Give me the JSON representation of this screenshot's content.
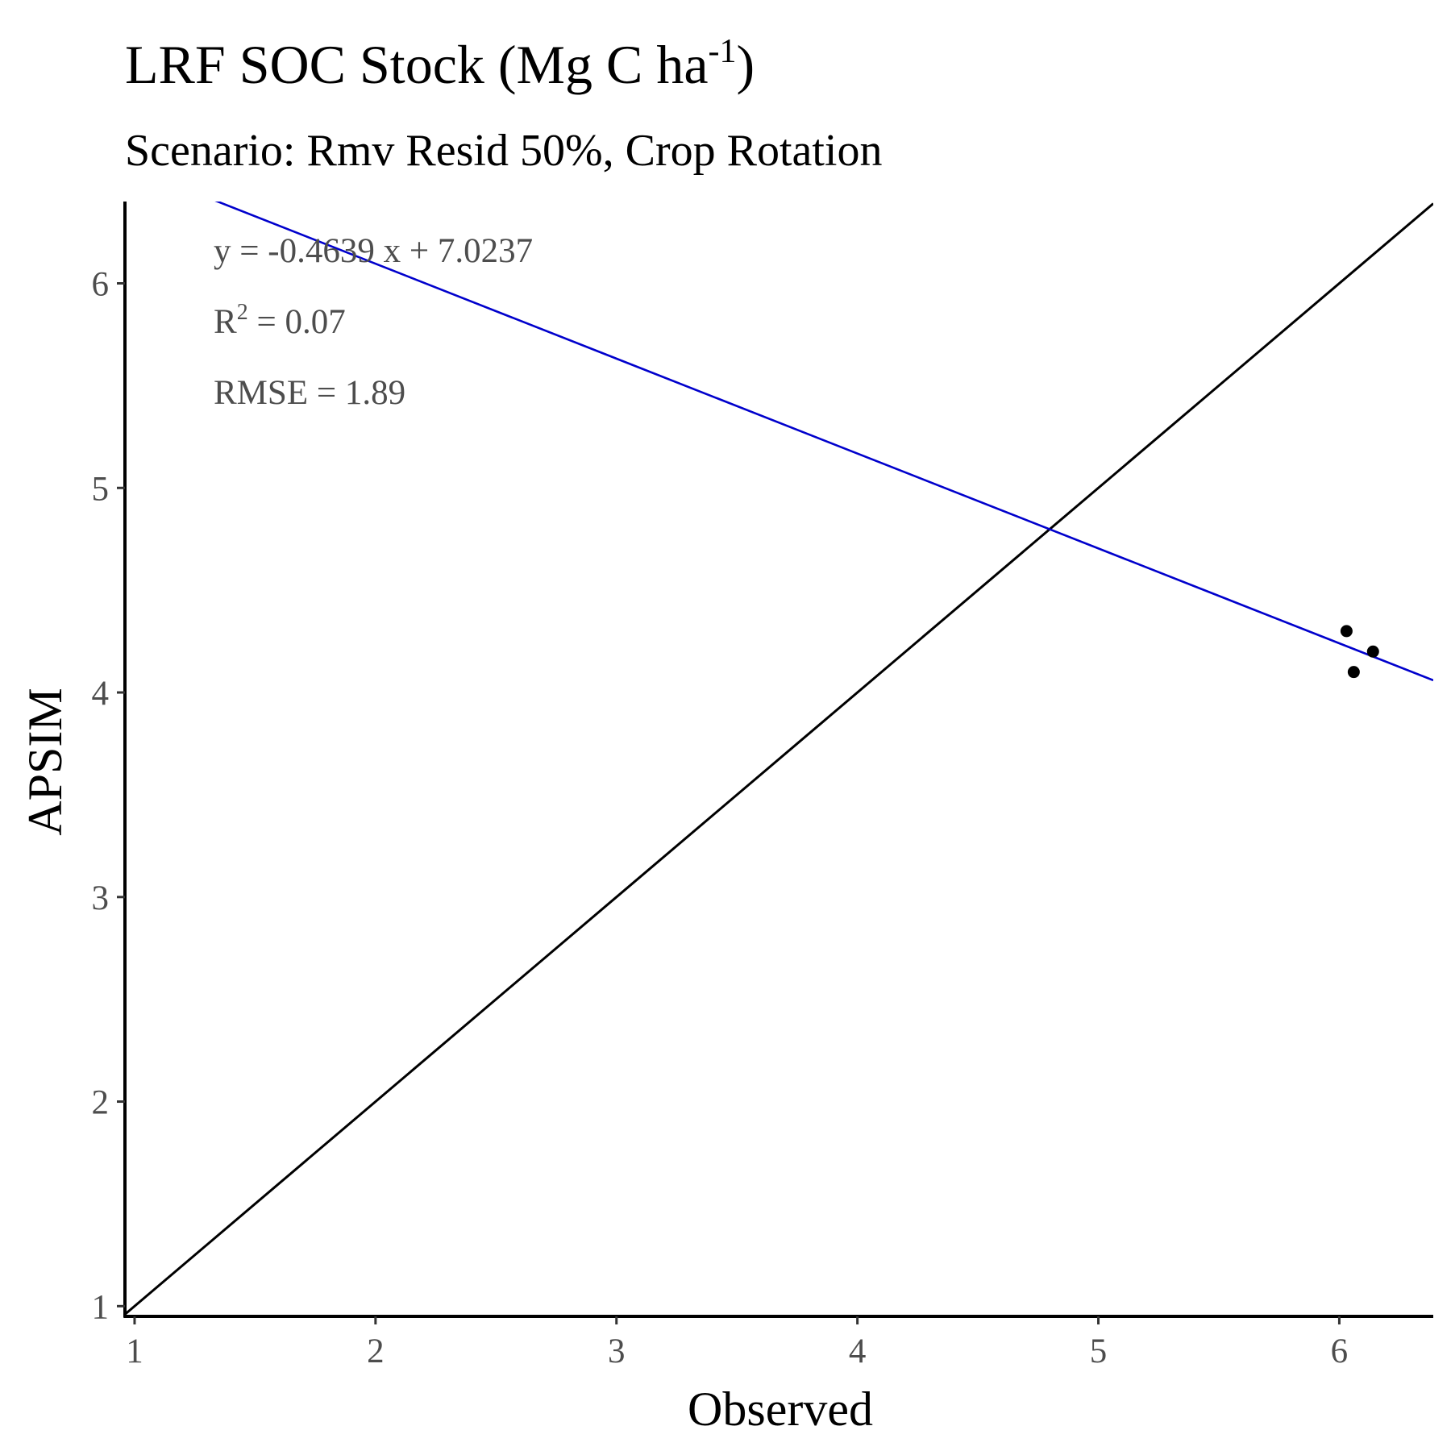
{
  "chart_data": {
    "type": "scatter",
    "title": "LRF SOC Stock (Mg C ha",
    "title_superscript": "-1",
    "title_suffix": ")",
    "subtitle": "Scenario: Rmv Resid 50%, Crop Rotation",
    "xlabel": "Observed",
    "ylabel": "APSIM",
    "xlim": [
      0.96,
      6.39
    ],
    "ylim": [
      0.95,
      6.4
    ],
    "x_ticks": [
      1,
      2,
      3,
      4,
      5,
      6
    ],
    "y_ticks": [
      1,
      2,
      3,
      4,
      5,
      6
    ],
    "grid": false,
    "legend": "none",
    "points": [
      {
        "x": 6.03,
        "y": 4.3
      },
      {
        "x": 6.06,
        "y": 4.1
      },
      {
        "x": 6.14,
        "y": 4.2
      }
    ],
    "regression_line": {
      "slope": -0.4639,
      "intercept": 7.0237,
      "color": "#0000cc"
    },
    "identity_line": {
      "slope": 1,
      "intercept": 0,
      "color": "#000000"
    },
    "annotations": {
      "equation": "y = -0.4639 x +  7.0237",
      "r2_label": "R",
      "r2_superscript": "2",
      "r2_value": " = 0.07",
      "rmse": "RMSE = 1.89"
    },
    "colors": {
      "points": "#000000",
      "axis": "#000000",
      "text": "#4d4d4d"
    }
  }
}
